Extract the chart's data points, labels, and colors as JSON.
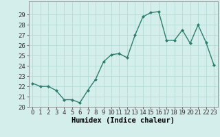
{
  "x": [
    0,
    1,
    2,
    3,
    4,
    5,
    6,
    7,
    8,
    9,
    10,
    11,
    12,
    13,
    14,
    15,
    16,
    17,
    18,
    19,
    20,
    21,
    22,
    23
  ],
  "y": [
    22.3,
    22.0,
    22.0,
    21.6,
    20.7,
    20.7,
    20.4,
    21.6,
    22.7,
    24.4,
    25.1,
    25.2,
    24.8,
    27.0,
    28.8,
    29.2,
    29.3,
    26.5,
    26.5,
    27.5,
    26.2,
    28.0,
    26.3,
    24.1
  ],
  "line_color": "#2d7d6e",
  "marker": "D",
  "marker_size": 2.0,
  "bg_color": "#d4eeeb",
  "grid_color": "#aed8d3",
  "xlabel": "Humidex (Indice chaleur)",
  "ylim": [
    20,
    30
  ],
  "xlim_min": -0.5,
  "xlim_max": 23.5,
  "yticks": [
    20,
    21,
    22,
    23,
    24,
    25,
    26,
    27,
    28,
    29
  ],
  "xticks": [
    0,
    1,
    2,
    3,
    4,
    5,
    6,
    7,
    8,
    9,
    10,
    11,
    12,
    13,
    14,
    15,
    16,
    17,
    18,
    19,
    20,
    21,
    22,
    23
  ],
  "tick_fontsize": 6.5,
  "xlabel_fontsize": 7.5,
  "linewidth": 1.0
}
